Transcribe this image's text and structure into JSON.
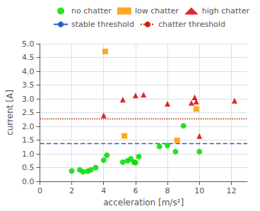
{
  "chart_data": {
    "type": "scatter",
    "xlabel": "acceleration [m/s²]",
    "ylabel": "current [A]",
    "series": [
      {
        "name": "no chatter",
        "type": "scatter",
        "marker": "circle",
        "color": "#00dd00",
        "x": [
          2.0,
          2.5,
          2.7,
          3.0,
          3.2,
          3.5,
          4.0,
          4.2,
          5.2,
          5.5,
          5.7,
          5.9,
          6.0,
          6.2,
          7.5,
          8.0,
          8.5,
          9.0,
          10.0
        ],
        "values": [
          0.38,
          0.42,
          0.35,
          0.37,
          0.42,
          0.5,
          0.77,
          0.95,
          0.7,
          0.75,
          0.82,
          0.7,
          0.68,
          0.9,
          1.27,
          1.3,
          1.08,
          2.02,
          1.08
        ]
      },
      {
        "name": "low chatter",
        "type": "scatter",
        "marker": "square",
        "color": "#ff9900",
        "x": [
          4.1,
          5.3,
          8.6,
          9.8
        ],
        "values": [
          4.72,
          1.65,
          1.49,
          2.63
        ]
      },
      {
        "name": "high chatter",
        "type": "scatter",
        "marker": "triangle",
        "color": "#dd0000",
        "x": [
          4.0,
          5.2,
          6.0,
          6.5,
          8.0,
          9.5,
          9.7,
          9.8,
          10.0,
          12.2
        ],
        "values": [
          2.4,
          2.97,
          3.12,
          3.15,
          2.82,
          2.85,
          3.05,
          2.9,
          1.65,
          2.93
        ]
      },
      {
        "name": "stable threshold",
        "type": "hline",
        "color": "#2060cc",
        "line_style": "dashed",
        "values": [
          1.37
        ]
      },
      {
        "name": "chatter threshold",
        "type": "hline",
        "color": "#cc2200",
        "line_style": "dotted",
        "values": [
          2.27
        ]
      }
    ],
    "xlim": [
      0,
      13
    ],
    "ylim": [
      0,
      5
    ],
    "xticks": [
      0,
      2,
      4,
      6,
      8,
      10,
      12
    ],
    "yticks": [
      {
        "value": 0,
        "label": "0.0"
      },
      0.5,
      {
        "value": 1.0,
        "label": "1.0"
      },
      1.5,
      {
        "value": 2.0,
        "label": "2.0"
      },
      2.5,
      {
        "value": 3.0,
        "label": "3.0"
      },
      3.5,
      {
        "value": 4.0,
        "label": "4.0"
      },
      4.5,
      {
        "value": 5.0,
        "label": "5.0"
      }
    ],
    "grid": true,
    "legend": "upper right"
  }
}
